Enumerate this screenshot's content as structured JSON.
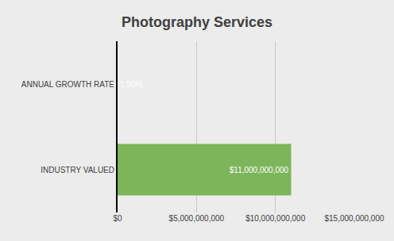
{
  "chart_data": {
    "type": "bar",
    "title": "Photography Services",
    "orientation": "horizontal",
    "categories": [
      "ANNUAL GROWTH RATE",
      "INDUSTRY VALUED"
    ],
    "values": [
      0.019,
      11000000000
    ],
    "value_labels": [
      "1.90%",
      "$11,000,000,000"
    ],
    "data_labels": true,
    "color": "#7cb55a",
    "xlim": [
      0,
      15000000000
    ],
    "xticks": [
      {
        "value": 0,
        "label": "$0"
      },
      {
        "value": 5000000000,
        "label": "$5,000,000,000"
      },
      {
        "value": 10000000000,
        "label": "$10,000,000,000"
      },
      {
        "value": 15000000000,
        "label": "$15,000,000,000"
      }
    ],
    "grid": true
  }
}
